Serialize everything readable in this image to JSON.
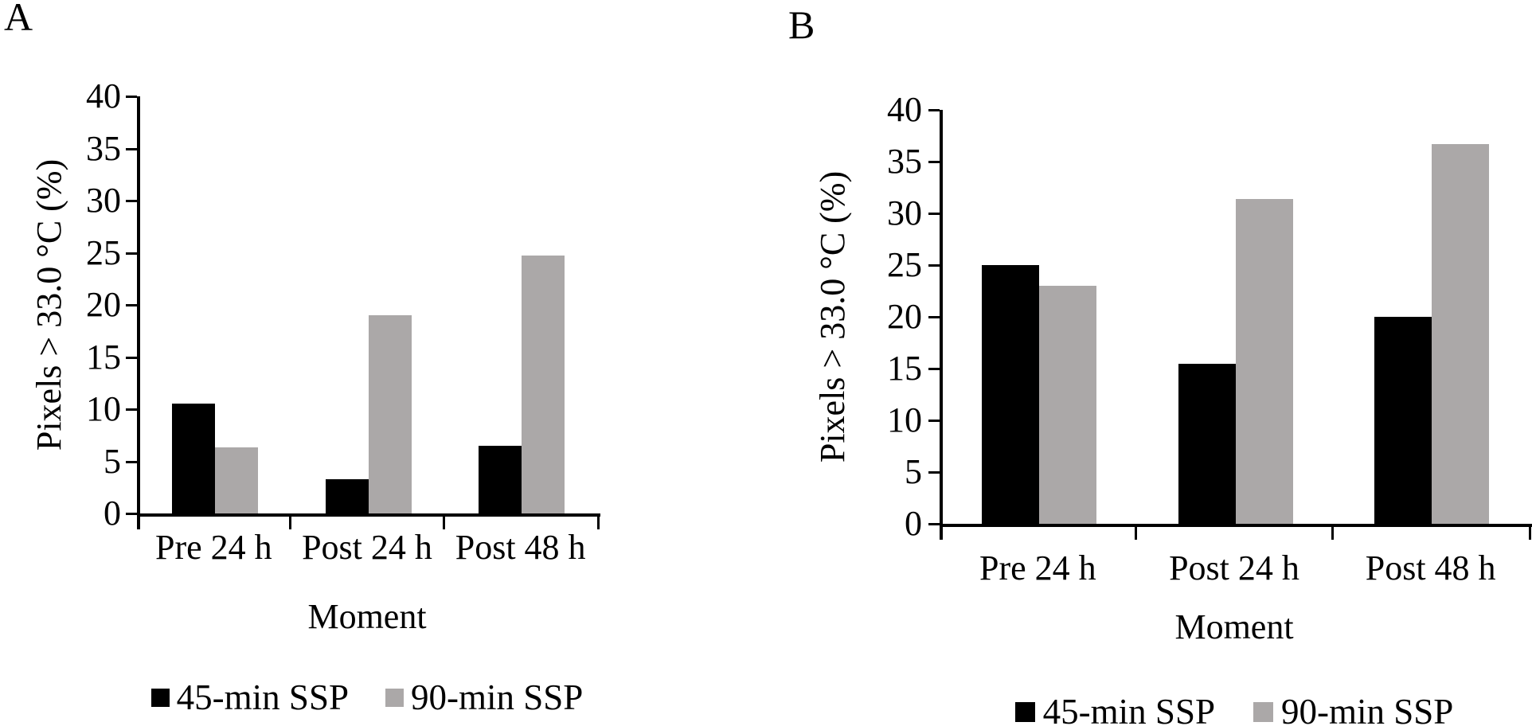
{
  "figure": {
    "background": "#ffffff",
    "axis_color": "#000000"
  },
  "chart_data": [
    {
      "type": "bar",
      "panel_label": "A",
      "title": "",
      "categories": [
        "Pre 24 h",
        "Post 24 h",
        "Post 48 h"
      ],
      "series": [
        {
          "name": "45-min SSP",
          "color": "#000000",
          "values": [
            10.5,
            3.3,
            6.5
          ]
        },
        {
          "name": "90-min SSP",
          "color": "#aba8a8",
          "values": [
            6.3,
            19.0,
            24.7
          ]
        }
      ],
      "xlabel": "Moment",
      "ylabel": "Pixels > 33.0 °C (%)",
      "ylim": [
        0,
        40
      ],
      "ystep": 5,
      "y_ticks": [
        0,
        5,
        10,
        15,
        20,
        25,
        30,
        35,
        40
      ],
      "grid": false,
      "legend_position": "bottom"
    },
    {
      "type": "bar",
      "panel_label": "B",
      "title": "",
      "categories": [
        "Pre 24 h",
        "Post 24 h",
        "Post 48 h"
      ],
      "series": [
        {
          "name": "45-min SSP",
          "color": "#000000",
          "values": [
            25.0,
            15.5,
            20.0
          ]
        },
        {
          "name": "90-min SSP",
          "color": "#aba8a8",
          "values": [
            23.0,
            31.4,
            36.7
          ]
        }
      ],
      "xlabel": "Moment",
      "ylabel": "Pixels > 33.0 °C (%)",
      "ylim": [
        0,
        40
      ],
      "ystep": 5,
      "y_ticks": [
        0,
        5,
        10,
        15,
        20,
        25,
        30,
        35,
        40
      ],
      "grid": false,
      "legend_position": "bottom"
    }
  ]
}
